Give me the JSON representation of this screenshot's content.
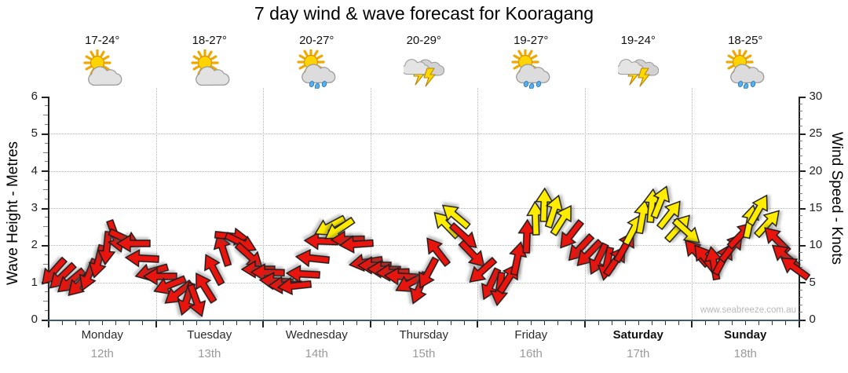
{
  "title": "7 day wind & wave forecast for Kooragang",
  "watermark": "www.seabreeze.com.au",
  "chart_data": {
    "type": "wind-arrows",
    "title": "7 day wind & wave forecast for Kooragang",
    "left_axis": {
      "label": "Wave Height - Metres",
      "min": 0,
      "max": 6,
      "major_tick_step": 1
    },
    "right_axis": {
      "label": "Wind Speed - Knots",
      "min": 0,
      "max": 30,
      "major_tick_step": 5
    },
    "grid": {
      "horizontal_lines_m": [
        1,
        2,
        3,
        4,
        5
      ],
      "vertical_lines": "day-boundaries"
    },
    "colors": {
      "wind_light": "#e8140e",
      "wind_moderate": "#ffec00",
      "arrow_outline": "#1a1a1a",
      "x_axis_line": "#3a5a78",
      "grid_line": "#b3b3b3",
      "date_text": "#9a9a9a"
    },
    "legend_note": "red arrows = lighter wind, yellow arrows = 12+ knots, arrow direction = wind direction",
    "days": [
      {
        "name": "Monday",
        "date": "12th",
        "temp": "17-24°",
        "icon": "sun-cloud",
        "weekend": false,
        "arrows": [
          [
            6.4,
            132,
            "r"
          ],
          [
            5.8,
            136,
            "r"
          ],
          [
            5.2,
            140,
            "r"
          ],
          [
            4.9,
            134,
            "r"
          ],
          [
            6.0,
            112,
            "r"
          ],
          [
            7.8,
            104,
            "r"
          ],
          [
            9.6,
            96,
            "r"
          ],
          [
            11.2,
            70,
            "r"
          ],
          [
            10.9,
            25,
            "r"
          ],
          [
            10.2,
            180,
            "r"
          ],
          [
            8.2,
            183,
            "r"
          ],
          [
            6.4,
            164,
            "r"
          ]
        ]
      },
      {
        "name": "Tuesday",
        "date": "13th",
        "temp": "18-27°",
        "icon": "sun-cloud",
        "weekend": false,
        "arrows": [
          [
            5.8,
            180,
            "r"
          ],
          [
            4.7,
            158,
            "r"
          ],
          [
            3.6,
            142,
            "r"
          ],
          [
            2.7,
            108,
            "r"
          ],
          [
            2.5,
            70,
            "r"
          ],
          [
            4.3,
            -122,
            "r"
          ],
          [
            6.8,
            -118,
            "r"
          ],
          [
            9.4,
            -108,
            "r"
          ],
          [
            11.2,
            6,
            "r"
          ],
          [
            10.4,
            26,
            "r"
          ],
          [
            8.6,
            42,
            "r"
          ],
          [
            6.8,
            180,
            "r"
          ]
        ]
      },
      {
        "name": "Wednesday",
        "date": "14th",
        "temp": "20-27°",
        "icon": "sun-cloud-rain",
        "weekend": false,
        "arrows": [
          [
            6.3,
            181,
            "r"
          ],
          [
            5.2,
            184,
            "r"
          ],
          [
            4.6,
            177,
            "r"
          ],
          [
            4.5,
            174,
            "r"
          ],
          [
            6.1,
            183,
            "r"
          ],
          [
            8.2,
            186,
            "r"
          ],
          [
            10.6,
            182,
            "r"
          ],
          [
            12.6,
            152,
            "y"
          ],
          [
            12.2,
            146,
            "y"
          ],
          [
            10.8,
            179,
            "r"
          ],
          [
            10.1,
            176,
            "r"
          ],
          [
            7.7,
            171,
            "r"
          ]
        ]
      },
      {
        "name": "Thursday",
        "date": "15th",
        "temp": "20-29°",
        "icon": "storm",
        "weekend": false,
        "arrows": [
          [
            7.3,
            180,
            "r"
          ],
          [
            6.8,
            181,
            "r"
          ],
          [
            6.3,
            178,
            "r"
          ],
          [
            5.8,
            183,
            "r"
          ],
          [
            5.0,
            152,
            "r"
          ],
          [
            4.2,
            112,
            "r"
          ],
          [
            6.2,
            118,
            "r"
          ],
          [
            9.2,
            -128,
            "r"
          ],
          [
            12.8,
            -134,
            "y"
          ],
          [
            13.9,
            -140,
            "y"
          ],
          [
            11.2,
            42,
            "r"
          ],
          [
            8.8,
            46,
            "r"
          ]
        ]
      },
      {
        "name": "Friday",
        "date": "16th",
        "temp": "19-27°",
        "icon": "sun-cloud-rain",
        "weekend": false,
        "arrows": [
          [
            6.6,
            138,
            "r"
          ],
          [
            4.8,
            115,
            "r"
          ],
          [
            4.1,
            98,
            "r"
          ],
          [
            5.6,
            -58,
            "r"
          ],
          [
            8.2,
            -78,
            "r"
          ],
          [
            11.2,
            -88,
            "r"
          ],
          [
            13.6,
            -92,
            "y"
          ],
          [
            15.4,
            -88,
            "y"
          ],
          [
            14.6,
            -72,
            "y"
          ],
          [
            13.4,
            -58,
            "y"
          ],
          [
            11.4,
            128,
            "r"
          ],
          [
            9.6,
            133,
            "r"
          ]
        ]
      },
      {
        "name": "Saturday",
        "date": "17th",
        "temp": "19-24°",
        "icon": "storm",
        "weekend": true,
        "arrows": [
          [
            8.9,
            134,
            "r"
          ],
          [
            8.1,
            116,
            "r"
          ],
          [
            7.5,
            102,
            "r"
          ],
          [
            7.9,
            -56,
            "r"
          ],
          [
            9.8,
            -60,
            "r"
          ],
          [
            12.2,
            -62,
            "y"
          ],
          [
            13.8,
            -80,
            "y"
          ],
          [
            15.3,
            -85,
            "y"
          ],
          [
            15.8,
            -68,
            "y"
          ],
          [
            14.2,
            -52,
            "y"
          ],
          [
            12.4,
            -48,
            "y"
          ],
          [
            11.8,
            42,
            "y"
          ]
        ]
      },
      {
        "name": "Sunday",
        "date": "18th",
        "temp": "18-25°",
        "icon": "sun-cloud-rain",
        "weekend": true,
        "arrows": [
          [
            9.0,
            -132,
            "r"
          ],
          [
            8.2,
            -128,
            "r"
          ],
          [
            7.6,
            -100,
            "r"
          ],
          [
            8.1,
            -62,
            "r"
          ],
          [
            9.7,
            -52,
            "r"
          ],
          [
            11.4,
            -46,
            "r"
          ],
          [
            13.2,
            -78,
            "y"
          ],
          [
            14.8,
            -60,
            "y"
          ],
          [
            13.0,
            -48,
            "y"
          ],
          [
            10.8,
            -135,
            "r"
          ],
          [
            8.6,
            -140,
            "r"
          ],
          [
            7.0,
            -144,
            "r"
          ]
        ]
      }
    ]
  }
}
